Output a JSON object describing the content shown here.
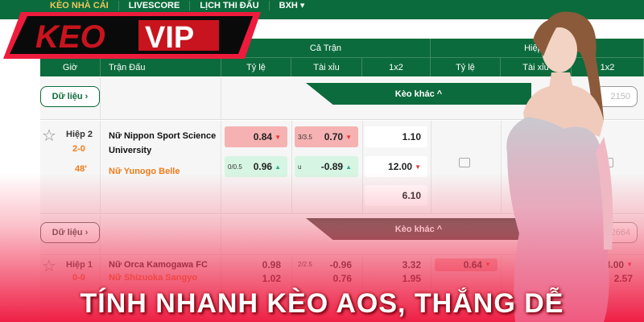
{
  "nav": {
    "items": [
      "KÈO NHÀ CÁI",
      "LIVESCORE",
      "LỊCH THI ĐẤU",
      "BXH ▾"
    ]
  },
  "logo": {
    "text_left": "KEO",
    "text_right": "VIP"
  },
  "table": {
    "headers": {
      "time": "Giờ",
      "match": "Trận Đấu",
      "full": "Cả Trận",
      "half": "Hiệp 1"
    },
    "subheaders": [
      "Tỷ lệ",
      "Tài xỉu",
      "1x2",
      "Tỷ lệ",
      "Tài xỉu",
      "1x2"
    ],
    "data_button": "Dữ liệu ›",
    "more_bets": "Kèo khác ^",
    "matches": [
      {
        "period": "Hiệp 2",
        "score": "2-0",
        "minute": "48'",
        "home": "Nữ Nippon Sport Science University",
        "away": "Nữ Yunogo Belle",
        "count": "2150",
        "hdp": {
          "home": "0.84",
          "line": "0/0.5",
          "away": "0.96"
        },
        "ou": {
          "line": "3/3.5",
          "over": "0.70",
          "under_label": "u",
          "under": "-0.89"
        },
        "x12": [
          "1.10",
          "12.00",
          "6.10"
        ],
        "half_locked": true
      },
      {
        "period": "Hiệp 1",
        "score": "0-0",
        "home": "Nữ Orca Kamogawa FC",
        "away": "Nữ Shizuoka Sangyo",
        "count": "2664",
        "hdp": {
          "home": "0.98",
          "away": "1.02"
        },
        "ou": {
          "line": "2/2.5",
          "over": "-0.96",
          "under": "0.76"
        },
        "x12": [
          "3.32",
          "1.95"
        ],
        "half": {
          "hdp": "0.64",
          "x12": [
            "4.00",
            "2.57"
          ]
        }
      }
    ]
  },
  "headline": "TÍNH NHANH KÈO AOS, THẮNG DỄ",
  "colors": {
    "green": "#0c6b3c",
    "red": "#ee143c",
    "odd_down": "#f6b2b2",
    "odd_up": "#d6f5e2"
  }
}
